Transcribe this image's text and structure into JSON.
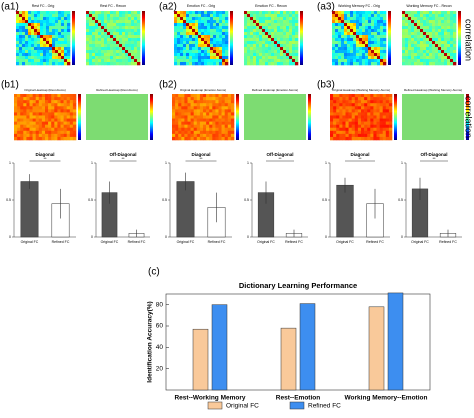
{
  "panel_labels": [
    "(a1)",
    "(a2)",
    "(a3)",
    "(b1)",
    "(b2)",
    "(b3)",
    "(c)"
  ],
  "colorbar_label": "correlation",
  "heatmap_titles_a": [
    "Rest FC - Orig",
    "Rest FC - Recon",
    "Emotion FC - Orig",
    "Emotion FC - Recon",
    "Working Memory FC - Orig",
    "Working Memory FC - Recon"
  ],
  "heatmap_titles_b": [
    "Original Heatmap (Rest Atoms)",
    "Refined Heatmap (Rest Atoms)",
    "Original Heatmap (Emotion Atoms)",
    "Refined Heatmap (Emotion Atoms)",
    "Original Heatmap (Working Memory Atoms)",
    "Refined Heatmap (Working Memory Atoms)"
  ],
  "chart_data": [
    {
      "type": "bar",
      "title": "Diagonal",
      "categories": [
        "Original FC",
        "Refined FC"
      ],
      "values": [
        0.75,
        0.45
      ],
      "errors": [
        0.1,
        0.2
      ],
      "colors": [
        "#555555",
        "#ffffff"
      ],
      "ylim": [
        0,
        1
      ],
      "yticks": [
        0,
        0.5,
        1
      ],
      "annotation": "**"
    },
    {
      "type": "bar",
      "title": "Off-Diagonal",
      "categories": [
        "Original FC",
        "Refined FC"
      ],
      "values": [
        0.6,
        0.05
      ],
      "errors": [
        0.15,
        0.05
      ],
      "colors": [
        "#555555",
        "#ffffff"
      ],
      "ylim": [
        0,
        1
      ],
      "yticks": [
        0,
        0.5,
        1
      ],
      "annotation": "**"
    },
    {
      "type": "bar",
      "title": "Diagonal",
      "categories": [
        "Original FC",
        "Refined FC"
      ],
      "values": [
        0.75,
        0.4
      ],
      "errors": [
        0.12,
        0.2
      ],
      "colors": [
        "#555555",
        "#ffffff"
      ],
      "ylim": [
        0,
        1
      ],
      "yticks": [
        0,
        0.5,
        1
      ],
      "annotation": "**"
    },
    {
      "type": "bar",
      "title": "Off-Diagonal",
      "categories": [
        "Original FC",
        "Refined FC"
      ],
      "values": [
        0.6,
        0.05
      ],
      "errors": [
        0.15,
        0.05
      ],
      "colors": [
        "#555555",
        "#ffffff"
      ],
      "ylim": [
        0,
        1
      ],
      "yticks": [
        0,
        0.5,
        1
      ],
      "annotation": "**"
    },
    {
      "type": "bar",
      "title": "Diagonal",
      "categories": [
        "Original FC",
        "Refined FC"
      ],
      "values": [
        0.7,
        0.45
      ],
      "errors": [
        0.1,
        0.2
      ],
      "colors": [
        "#555555",
        "#ffffff"
      ],
      "ylim": [
        0,
        1
      ],
      "yticks": [
        0,
        0.5,
        1
      ],
      "annotation": "**"
    },
    {
      "type": "bar",
      "title": "Off-Diagonal",
      "categories": [
        "Original FC",
        "Refined FC"
      ],
      "values": [
        0.65,
        0.05
      ],
      "errors": [
        0.15,
        0.05
      ],
      "colors": [
        "#555555",
        "#ffffff"
      ],
      "ylim": [
        0,
        1
      ],
      "yticks": [
        0,
        0.5,
        1
      ],
      "annotation": "**"
    },
    {
      "type": "grouped_bar",
      "title": "Dictionary Learning Performance",
      "y_label": "Identification Accuracy(%)",
      "categories": [
        "Rest--Working Memory",
        "Rest--Emotion",
        "Working Memory--Emotion"
      ],
      "series": [
        {
          "name": "Original FC",
          "color": "#f9c99a",
          "values": [
            57,
            58,
            78
          ]
        },
        {
          "name": "Refined FC",
          "color": "#3d8ef0",
          "values": [
            80,
            81,
            91
          ]
        }
      ],
      "ylim": [
        0,
        90
      ],
      "yticks": [
        20,
        40,
        60,
        80
      ]
    }
  ]
}
